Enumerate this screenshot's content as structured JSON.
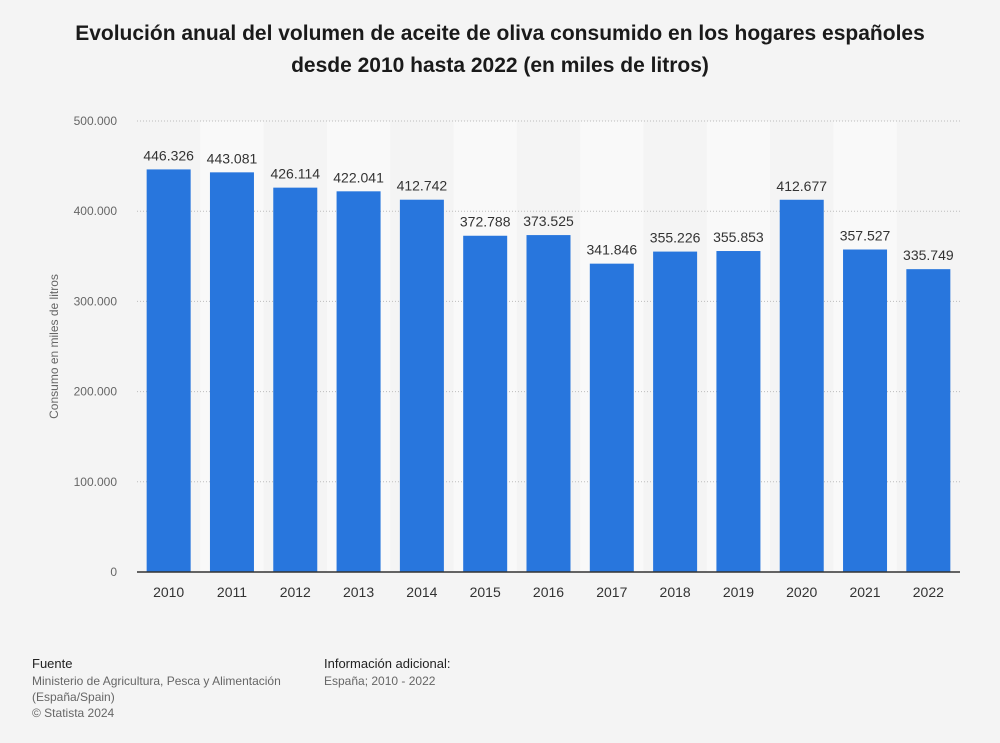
{
  "title_line1": "Evolución anual del volumen de aceite de oliva consumido en los hogares españoles",
  "title_line2": "desde 2010 hasta 2022 (en miles de litros)",
  "footer": {
    "source_heading": "Fuente",
    "source_line1": "Ministerio de Agricultura, Pesca y Alimentación",
    "source_line2": "(España/Spain)",
    "copyright": "© Statista 2024",
    "info_heading": "Información adicional:",
    "info_text": "España; 2010 - 2022"
  },
  "colors": {
    "bar": "#2876dd",
    "band": "#f9f9f9",
    "grid": "#bdbdbd",
    "axis": "#333333"
  },
  "chart_data": {
    "type": "bar",
    "categories": [
      "2010",
      "2011",
      "2012",
      "2013",
      "2014",
      "2015",
      "2016",
      "2017",
      "2018",
      "2019",
      "2020",
      "2021",
      "2022"
    ],
    "values": [
      446326,
      443081,
      426114,
      422041,
      412742,
      372788,
      373525,
      341846,
      355226,
      355853,
      412677,
      357527,
      335749
    ],
    "value_labels": [
      "446.326",
      "443.081",
      "426.114",
      "422.041",
      "412.742",
      "372.788",
      "373.525",
      "341.846",
      "355.226",
      "355.853",
      "412.677",
      "357.527",
      "335.749"
    ],
    "ylabel": "Consumo en miles de litros",
    "xlabel": "",
    "ylim": [
      0,
      500000
    ],
    "yticks": [
      0,
      100000,
      200000,
      300000,
      400000,
      500000
    ],
    "ytick_labels": [
      "0",
      "100.000",
      "200.000",
      "300.000",
      "400.000",
      "500.000"
    ],
    "grid": true
  }
}
